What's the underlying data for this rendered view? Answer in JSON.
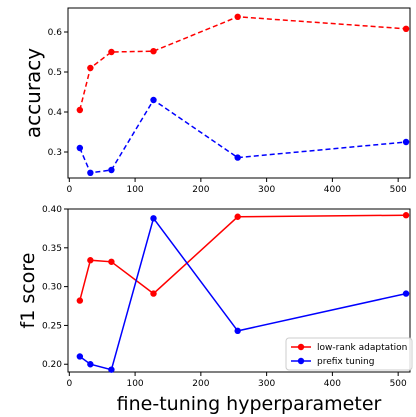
{
  "chart_data": [
    {
      "type": "line",
      "title": "",
      "xlabel": "",
      "ylabel": "accuracy",
      "xlim": [
        -2,
        518
      ],
      "ylim": [
        0.235,
        0.66
      ],
      "xticks": [
        0,
        100,
        200,
        300,
        400,
        500
      ],
      "xtick_labels": [
        "0",
        "100",
        "200",
        "300",
        "400",
        "500"
      ],
      "yticks": [
        0.3,
        0.4,
        0.5,
        0.6
      ],
      "ytick_labels": [
        "0.3",
        "0.4",
        "0.5",
        "0.6"
      ],
      "linestyle": "dashed",
      "legend": null,
      "series": [
        {
          "name": "",
          "color": "#ff0000",
          "x": [
            16,
            32,
            64,
            128,
            256,
            512
          ],
          "y": [
            0.405,
            0.51,
            0.55,
            0.552,
            0.638,
            0.608
          ]
        },
        {
          "name": "",
          "color": "#0000ff",
          "x": [
            16,
            32,
            64,
            128,
            256,
            512
          ],
          "y": [
            0.31,
            0.248,
            0.255,
            0.43,
            0.286,
            0.325
          ]
        }
      ]
    },
    {
      "type": "line",
      "title": "",
      "xlabel": "fine-tuning hyperparameter",
      "ylabel": "f1 score",
      "xlim": [
        -2,
        518
      ],
      "ylim": [
        0.19,
        0.4
      ],
      "xticks": [
        0,
        100,
        200,
        300,
        400,
        500
      ],
      "xtick_labels": [
        "0",
        "100",
        "200",
        "300",
        "400",
        "500"
      ],
      "yticks": [
        0.2,
        0.25,
        0.3,
        0.35,
        0.4
      ],
      "ytick_labels": [
        "0.20",
        "0.25",
        "0.30",
        "0.35",
        "0.40"
      ],
      "linestyle": "solid",
      "legend": "bottom-right",
      "series": [
        {
          "name": "low-rank adaptation",
          "color": "#ff0000",
          "x": [
            16,
            32,
            64,
            128,
            256,
            512
          ],
          "y": [
            0.282,
            0.334,
            0.332,
            0.291,
            0.39,
            0.392
          ]
        },
        {
          "name": "prefix tuning",
          "color": "#0000ff",
          "x": [
            16,
            32,
            64,
            128,
            256,
            512
          ],
          "y": [
            0.21,
            0.2,
            0.193,
            0.388,
            0.243,
            0.291
          ]
        }
      ]
    }
  ]
}
